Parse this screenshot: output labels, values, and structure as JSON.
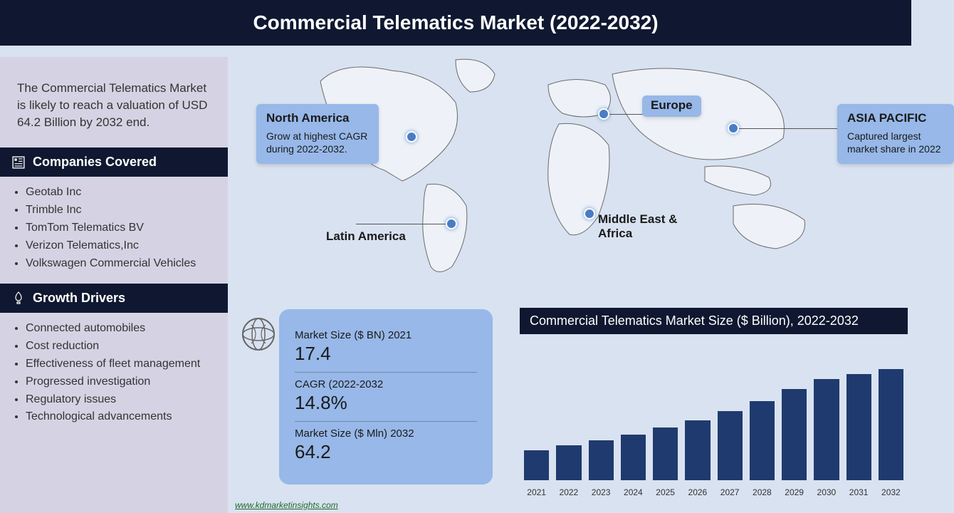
{
  "header": {
    "title": "Commercial Telematics Market (2022-2032)"
  },
  "summary": "The Commercial Telematics Market is likely to reach a valuation of USD 64.2 Billion by 2032 end.",
  "companies_section": {
    "title": "Companies Covered",
    "items": [
      "Geotab Inc",
      "Trimble Inc",
      "TomTom Telematics BV",
      "Verizon Telematics,Inc",
      "Volkswagen Commercial Vehicles"
    ]
  },
  "drivers_section": {
    "title": "Growth Drivers",
    "items": [
      "Connected automobiles",
      "Cost reduction",
      "Effectiveness of fleet management",
      "Progressed investigation",
      "Regulatory issues",
      "Technological advancements"
    ]
  },
  "regions": {
    "na": {
      "title": "North America",
      "desc": "Grow at highest CAGR during 2022-2032."
    },
    "la": {
      "label": "Latin America"
    },
    "eu": {
      "label": "Europe"
    },
    "mea": {
      "label": "Middle East & Africa"
    },
    "ap": {
      "title": "ASIA PACIFIC",
      "desc": "Captured largest market share in 2022"
    }
  },
  "stats": {
    "size2021_label": "Market Size ($ BN) 2021",
    "size2021_value": "17.4",
    "cagr_label": "CAGR (2022-2032",
    "cagr_value": "14.8%",
    "size2032_label": "Market Size ($ Mln) 2032",
    "size2032_value": "64.2"
  },
  "chart": {
    "title": "Commercial Telematics Market Size ($ Billion), 2022-2032",
    "type": "bar",
    "categories": [
      "2021",
      "2022",
      "2023",
      "2024",
      "2025",
      "2026",
      "2027",
      "2028",
      "2029",
      "2030",
      "2031",
      "2032"
    ],
    "values": [
      17.4,
      20.0,
      23.0,
      26.4,
      30.3,
      34.7,
      39.9,
      45.8,
      52.6,
      58.5,
      61.3,
      64.2
    ],
    "bar_color": "#1f3a6e",
    "ylim": [
      0,
      70
    ],
    "background_color": "#d9e2f0",
    "label_fontsize": 12
  },
  "footer": {
    "link": "www.kdmarketinsights.com"
  },
  "colors": {
    "header_bg": "#0f1830",
    "sidebar_bg": "#d5d3e3",
    "main_bg": "#d9e2f0",
    "card_bg": "#97b8e8",
    "pin": "#4a7cc4"
  }
}
